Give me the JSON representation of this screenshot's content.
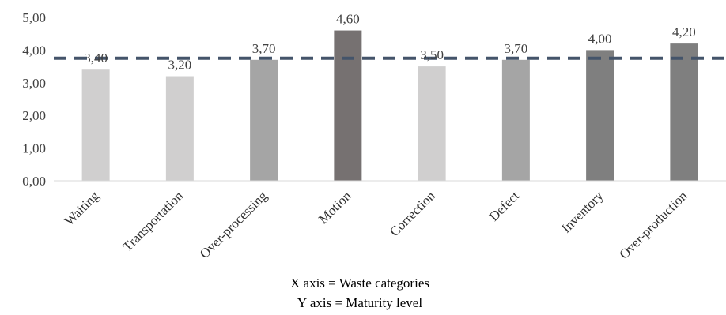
{
  "chart_data": {
    "type": "bar",
    "categories": [
      "Waiting",
      "Transportation",
      "Over-processing",
      "Motion",
      "Correction",
      "Defect",
      "Inventory",
      "Over-production"
    ],
    "values": [
      3.4,
      3.2,
      3.7,
      4.6,
      3.5,
      3.7,
      4.0,
      4.2
    ],
    "value_labels": [
      "3,40",
      "3,20",
      "3,70",
      "4,60",
      "3,50",
      "3,70",
      "4,00",
      "4,20"
    ],
    "bar_colors": [
      "#d0cfcf",
      "#d0cfcf",
      "#a5a5a5",
      "#767171",
      "#d0cfcf",
      "#a5a5a5",
      "#7f7f7f",
      "#7f7f7f"
    ],
    "ylim": [
      0,
      5
    ],
    "y_ticks": [
      0,
      1,
      2,
      3,
      4,
      5
    ],
    "y_tick_labels": [
      "0,00",
      "1,00",
      "2,00",
      "3,00",
      "4,00",
      "5,00"
    ],
    "reference_line": {
      "value": 3.75,
      "color": "#44546a",
      "style": "dashed"
    },
    "grid": false,
    "legend": "none",
    "caption_lines": [
      "X axis = Waste categories",
      "Y axis = Maturity level"
    ]
  }
}
